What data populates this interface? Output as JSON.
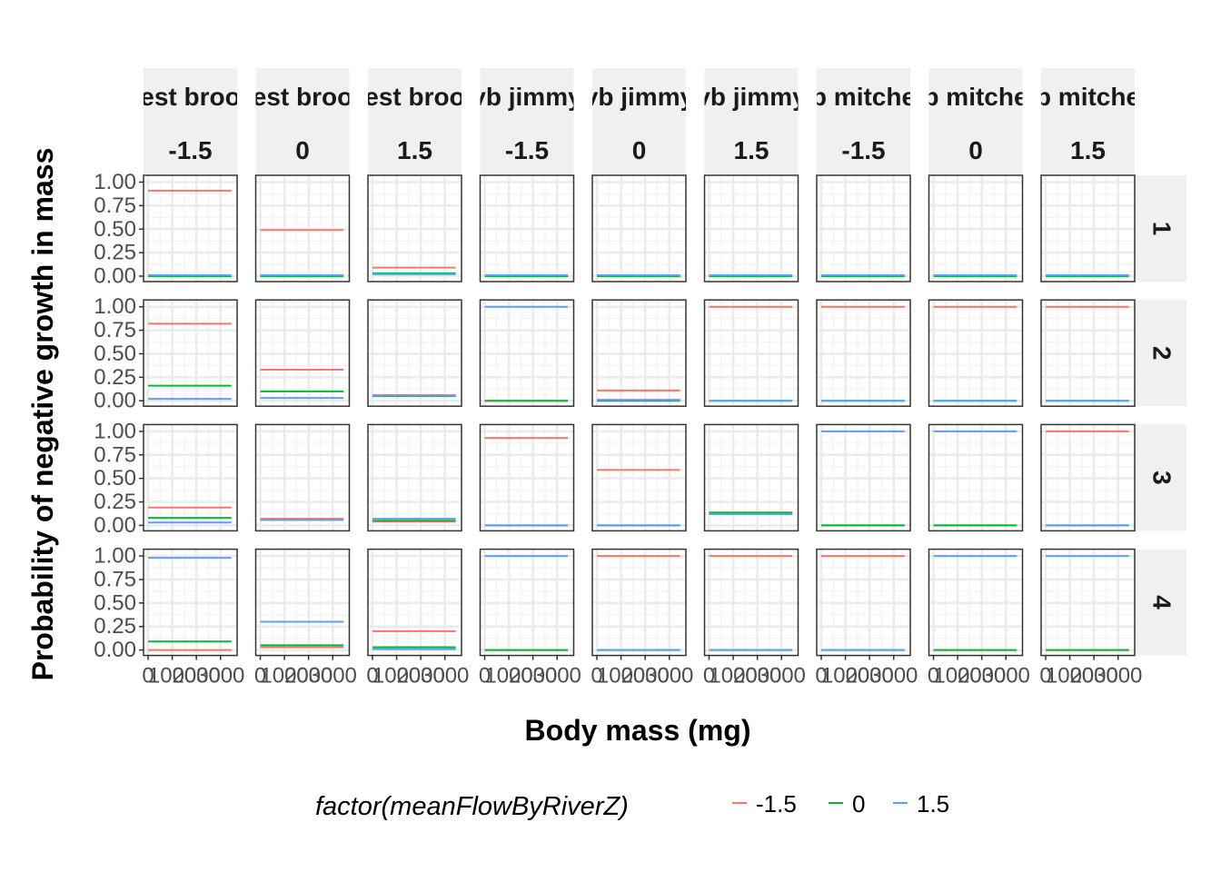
{
  "chart_data": {
    "type": "line",
    "xlabel": "Body mass (mg)",
    "ylabel": "Probability of negative growth in mass",
    "x_ticks": [
      "0",
      "1000",
      "2000",
      "3000"
    ],
    "xlim": [
      0,
      3500
    ],
    "y_ticks": [
      "0.00",
      "0.25",
      "0.50",
      "0.75",
      "1.00"
    ],
    "ylim": [
      0,
      1
    ],
    "column_facets": [
      {
        "river": "est broo",
        "flow": "-1.5"
      },
      {
        "river": "est broo",
        "flow": "0"
      },
      {
        "river": "est broo",
        "flow": "1.5"
      },
      {
        "river": "vb jimmy",
        "flow": "-1.5"
      },
      {
        "river": "vb jimmy",
        "flow": "0"
      },
      {
        "river": "vb jimmy",
        "flow": "1.5"
      },
      {
        "river": "b mitche",
        "flow": "-1.5"
      },
      {
        "river": "b mitche",
        "flow": "0"
      },
      {
        "river": "b mitche",
        "flow": "1.5"
      }
    ],
    "row_facets": [
      "1",
      "2",
      "3",
      "4"
    ],
    "legend": {
      "title": "factor(meanFlowByRiverZ)",
      "position": "bottom",
      "entries": [
        {
          "label": "-1.5",
          "color": "#F8766D"
        },
        {
          "label": "0",
          "color": "#00BA38"
        },
        {
          "label": "1.5",
          "color": "#619CFF"
        }
      ]
    },
    "grid": true,
    "series_values_by_row_col": [
      [
        {
          "-1.5": 0.91,
          "0": 0.0,
          "1.5": 0.01
        },
        {
          "-1.5": 0.49,
          "0": 0.0,
          "1.5": 0.01
        },
        {
          "-1.5": 0.09,
          "0": 0.03,
          "1.5": 0.02
        },
        {
          "-1.5": 0.0,
          "0": 0.0,
          "1.5": 0.01
        },
        {
          "-1.5": 0.0,
          "0": 0.0,
          "1.5": 0.01
        },
        {
          "-1.5": 0.0,
          "0": 0.0,
          "1.5": 0.01
        },
        {
          "-1.5": 0.0,
          "0": 0.0,
          "1.5": 0.01
        },
        {
          "-1.5": 0.0,
          "0": 0.0,
          "1.5": 0.01
        },
        {
          "-1.5": 0.0,
          "0": 0.0,
          "1.5": 0.01
        }
      ],
      [
        {
          "-1.5": 0.82,
          "0": 0.16,
          "1.5": 0.02
        },
        {
          "-1.5": 0.33,
          "0": 0.1,
          "1.5": 0.03
        },
        {
          "-1.5": 0.06,
          "0": 0.05,
          "1.5": 0.055
        },
        {
          "-1.5": 0.0,
          "0": 0.0,
          "1.5": 1.0
        },
        {
          "-1.5": 0.11,
          "0": 0.0,
          "1.5": 0.01
        },
        {
          "-1.5": 1.0,
          "0": 0.0,
          "1.5": 0.0
        },
        {
          "-1.5": 1.0,
          "0": 0.0,
          "1.5": 0.0
        },
        {
          "-1.5": 1.0,
          "0": 0.0,
          "1.5": 0.0
        },
        {
          "-1.5": 1.0,
          "0": 0.0,
          "1.5": 0.0
        }
      ],
      [
        {
          "-1.5": 0.19,
          "0": 0.08,
          "1.5": 0.03
        },
        {
          "-1.5": 0.07,
          "0": 0.06,
          "1.5": 0.06
        },
        {
          "-1.5": 0.04,
          "0": 0.05,
          "1.5": 0.07
        },
        {
          "-1.5": 0.93,
          "0": 0.0,
          "1.5": 0.0
        },
        {
          "-1.5": 0.59,
          "0": 0.0,
          "1.5": 0.0
        },
        {
          "-1.5": 0.14,
          "0": 0.13,
          "1.5": 0.12
        },
        {
          "-1.5": 0.0,
          "0": 0.0,
          "1.5": 1.0
        },
        {
          "-1.5": 0.0,
          "0": 0.0,
          "1.5": 1.0
        },
        {
          "-1.5": 1.0,
          "0": 0.0,
          "1.5": 0.0
        }
      ],
      [
        {
          "-1.5": 0.0,
          "0": 0.09,
          "1.5": 0.98
        },
        {
          "-1.5": 0.03,
          "0": 0.05,
          "1.5": 0.3
        },
        {
          "-1.5": 0.2,
          "0": 0.03,
          "1.5": 0.01
        },
        {
          "-1.5": 0.0,
          "0": 0.0,
          "1.5": 1.0
        },
        {
          "-1.5": 1.0,
          "0": 0.0,
          "1.5": 0.0
        },
        {
          "-1.5": 1.0,
          "0": 0.0,
          "1.5": 0.0
        },
        {
          "-1.5": 1.0,
          "0": 0.0,
          "1.5": 0.0
        },
        {
          "-1.5": 0.0,
          "0": 0.0,
          "1.5": 1.0
        },
        {
          "-1.5": 0.0,
          "0": 0.0,
          "1.5": 1.0
        }
      ]
    ]
  }
}
